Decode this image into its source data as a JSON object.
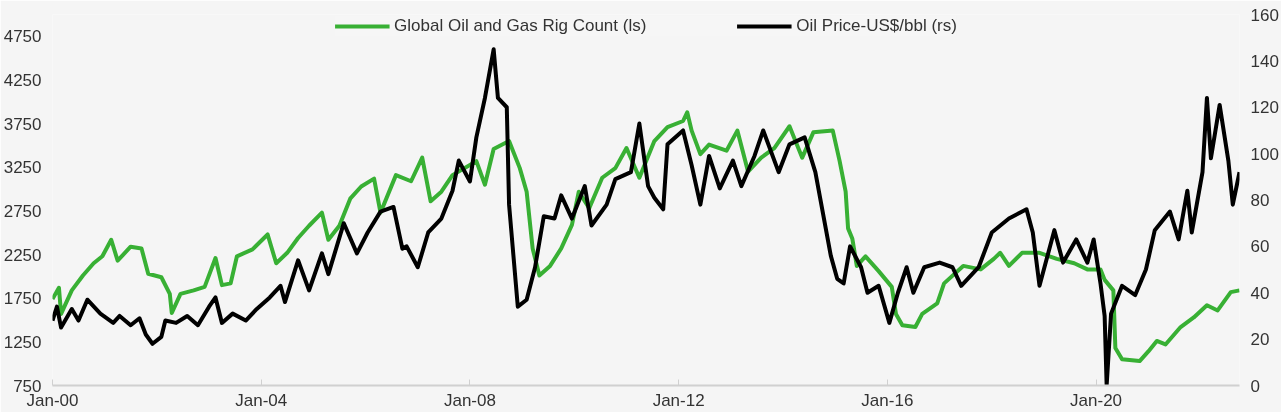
{
  "chart_data": {
    "type": "line",
    "legend": "top",
    "grid": false,
    "line_style": "solid",
    "marker": "none",
    "xlim": [
      "2000-01-01",
      "2022-10-01"
    ],
    "xticks": [
      {
        "value": "2000-01-01",
        "label": "Jan-00"
      },
      {
        "value": "2004-01-01",
        "label": "Jan-04"
      },
      {
        "value": "2008-01-01",
        "label": "Jan-08"
      },
      {
        "value": "2012-01-01",
        "label": "Jan-12"
      },
      {
        "value": "2016-01-01",
        "label": "Jan-16"
      },
      {
        "value": "2020-01-01",
        "label": "Jan-20"
      }
    ],
    "ylim": [
      750,
      5000
    ],
    "yticks": [
      750,
      1250,
      1750,
      2250,
      2750,
      3250,
      3750,
      4250,
      4750
    ],
    "y2lim": [
      0,
      160
    ],
    "y2ticks": [
      0,
      20,
      40,
      60,
      80,
      100,
      120,
      140,
      160
    ],
    "series": [
      {
        "name": "Global Oil and Gas Rig Count (ls)",
        "color": "#38b034",
        "axis": "y",
        "x": [
          "2000-01-01",
          "2000-02-15",
          "2000-03-01",
          "2000-05-15",
          "2000-08-01",
          "2000-10-15",
          "2000-12-15",
          "2001-02-15",
          "2001-04-01",
          "2001-07-01",
          "2001-09-15",
          "2001-11-01",
          "2002-02-01",
          "2002-04-01",
          "2002-04-15",
          "2002-06-15",
          "2002-09-15",
          "2002-12-01",
          "2003-02-15",
          "2003-04-01",
          "2003-06-01",
          "2003-07-15",
          "2003-11-01",
          "2004-02-15",
          "2004-04-15",
          "2004-07-01",
          "2004-09-15",
          "2004-12-01",
          "2005-03-01",
          "2005-04-15",
          "2005-07-01",
          "2005-09-15",
          "2005-12-01",
          "2006-03-01",
          "2006-04-15",
          "2006-08-01",
          "2006-11-15",
          "2007-02-01",
          "2007-04-01",
          "2007-06-15",
          "2007-09-01",
          "2008-02-15",
          "2008-04-15",
          "2008-06-15",
          "2008-10-01",
          "2008-12-15",
          "2009-02-01",
          "2009-03-15",
          "2009-05-01",
          "2009-07-15",
          "2009-10-01",
          "2009-12-15",
          "2010-02-01",
          "2010-04-15",
          "2010-07-15",
          "2010-10-15",
          "2011-01-01",
          "2011-04-01",
          "2011-07-15",
          "2011-10-15",
          "2012-02-01",
          "2012-03-01",
          "2012-04-01",
          "2012-06-01",
          "2012-08-01",
          "2012-12-01",
          "2013-02-15",
          "2013-05-01",
          "2013-08-01",
          "2013-11-01",
          "2014-02-15",
          "2014-05-15",
          "2014-08-01",
          "2014-12-15",
          "2015-02-01",
          "2015-03-15",
          "2015-04-01",
          "2015-05-01",
          "2015-06-01",
          "2015-08-01",
          "2015-11-01",
          "2016-02-01",
          "2016-03-01",
          "2016-04-15",
          "2016-07-15",
          "2016-09-01",
          "2016-12-15",
          "2017-02-01",
          "2017-06-15",
          "2017-10-15",
          "2018-01-15",
          "2018-03-01",
          "2018-05-01",
          "2018-08-01",
          "2018-12-01",
          "2019-04-01",
          "2019-08-01",
          "2019-11-01",
          "2020-02-01",
          "2020-03-01",
          "2020-05-01",
          "2020-05-15",
          "2020-07-01",
          "2020-11-01",
          "2021-01-01",
          "2021-03-01",
          "2021-05-01",
          "2021-08-15",
          "2021-11-15",
          "2022-02-15",
          "2022-05-01",
          "2022-08-01",
          "2022-10-01"
        ],
        "values": [
          1740,
          1870,
          1570,
          1840,
          2010,
          2150,
          2230,
          2420,
          2180,
          2340,
          2320,
          2030,
          1990,
          1800,
          1580,
          1800,
          1840,
          1880,
          2210,
          1900,
          1920,
          2230,
          2310,
          2480,
          2150,
          2270,
          2440,
          2580,
          2730,
          2420,
          2580,
          2890,
          3030,
          3120,
          2730,
          3160,
          3090,
          3360,
          2860,
          2970,
          3160,
          3320,
          3050,
          3460,
          3550,
          3240,
          2970,
          2320,
          2010,
          2120,
          2320,
          2590,
          2970,
          2780,
          3130,
          3240,
          3470,
          3130,
          3550,
          3710,
          3780,
          3880,
          3670,
          3400,
          3510,
          3440,
          3670,
          3200,
          3360,
          3470,
          3720,
          3360,
          3650,
          3670,
          3320,
          2970,
          2550,
          2430,
          2120,
          2230,
          2060,
          1880,
          1570,
          1440,
          1420,
          1570,
          1690,
          1920,
          2120,
          2080,
          2200,
          2270,
          2120,
          2270,
          2270,
          2200,
          2150,
          2080,
          2080,
          1960,
          1840,
          1180,
          1050,
          1030,
          1140,
          1260,
          1220,
          1420,
          1530,
          1670,
          1610,
          1820,
          1840
        ]
      },
      {
        "name": "Oil Price-US$/bbl (rs)",
        "color": "#000000",
        "axis": "y2",
        "x": [
          "2000-01-01",
          "2000-02-01",
          "2000-03-01",
          "2000-05-15",
          "2000-07-01",
          "2000-09-01",
          "2000-12-01",
          "2001-03-01",
          "2001-04-15",
          "2001-07-01",
          "2001-09-01",
          "2001-10-15",
          "2001-12-01",
          "2002-02-01",
          "2002-03-01",
          "2002-05-15",
          "2002-08-01",
          "2002-10-15",
          "2003-01-01",
          "2003-02-15",
          "2003-04-01",
          "2003-06-15",
          "2003-09-15",
          "2003-12-01",
          "2004-03-01",
          "2004-05-15",
          "2004-06-15",
          "2004-09-15",
          "2004-12-01",
          "2005-03-01",
          "2005-04-15",
          "2005-08-01",
          "2005-11-01",
          "2006-01-15",
          "2006-04-15",
          "2006-07-15",
          "2006-09-15",
          "2006-10-15",
          "2007-01-01",
          "2007-03-15",
          "2007-06-15",
          "2007-09-01",
          "2007-10-15",
          "2008-01-01",
          "2008-02-15",
          "2008-04-15",
          "2008-06-15",
          "2008-07-15",
          "2008-09-15",
          "2008-10-01",
          "2008-12-01",
          "2009-02-01",
          "2009-04-01",
          "2009-06-01",
          "2009-08-15",
          "2009-10-01",
          "2009-12-15",
          "2010-03-15",
          "2010-05-01",
          "2010-08-15",
          "2010-10-15",
          "2011-02-01",
          "2011-04-01",
          "2011-06-01",
          "2011-07-15",
          "2011-09-15",
          "2011-10-15",
          "2012-02-01",
          "2012-04-01",
          "2012-06-01",
          "2012-08-01",
          "2012-10-15",
          "2013-01-15",
          "2013-03-15",
          "2013-06-15",
          "2013-08-15",
          "2013-12-01",
          "2014-02-15",
          "2014-06-01",
          "2014-08-15",
          "2014-12-01",
          "2015-01-15",
          "2015-03-01",
          "2015-04-15",
          "2015-07-01",
          "2015-08-15",
          "2015-11-01",
          "2016-01-15",
          "2016-03-15",
          "2016-05-15",
          "2016-07-01",
          "2016-09-15",
          "2017-01-01",
          "2017-04-01",
          "2017-06-01",
          "2017-10-01",
          "2018-01-01",
          "2018-05-01",
          "2018-09-01",
          "2018-10-15",
          "2018-12-01",
          "2019-03-15",
          "2019-05-15",
          "2019-08-15",
          "2019-11-01",
          "2019-12-15",
          "2020-02-01",
          "2020-03-01",
          "2020-03-15",
          "2020-04-15",
          "2020-07-01",
          "2020-10-01",
          "2020-12-15",
          "2021-02-15",
          "2021-06-01",
          "2021-08-01",
          "2021-10-01",
          "2021-11-01",
          "2022-01-15",
          "2022-02-15",
          "2022-03-15",
          "2022-05-15",
          "2022-07-15",
          "2022-08-15",
          "2022-10-01"
        ],
        "values": [
          28,
          34,
          25,
          33,
          28,
          37,
          31,
          27,
          30,
          26,
          29,
          22,
          18,
          21,
          28,
          27,
          30,
          26,
          34,
          38,
          27,
          31,
          28,
          33,
          38,
          43,
          36,
          54,
          41,
          57,
          48,
          70,
          57,
          66,
          75,
          77,
          59,
          60,
          51,
          66,
          72,
          84,
          97,
          88,
          107,
          124,
          145,
          124,
          120,
          78,
          34,
          37,
          51,
          73,
          72,
          82,
          72,
          86,
          69,
          78,
          89,
          92,
          113,
          86,
          81,
          76,
          104,
          110,
          95,
          78,
          99,
          85,
          97,
          86,
          99,
          110,
          92,
          104,
          107,
          92,
          56,
          46,
          44,
          60,
          51,
          40,
          43,
          27,
          40,
          51,
          40,
          51,
          53,
          51,
          43,
          51,
          66,
          72,
          76,
          66,
          43,
          67,
          53,
          63,
          53,
          63,
          44,
          30,
          0,
          31,
          43,
          39,
          50,
          67,
          75,
          63,
          84,
          66,
          92,
          124,
          98,
          121,
          97,
          78,
          92
        ]
      }
    ]
  }
}
